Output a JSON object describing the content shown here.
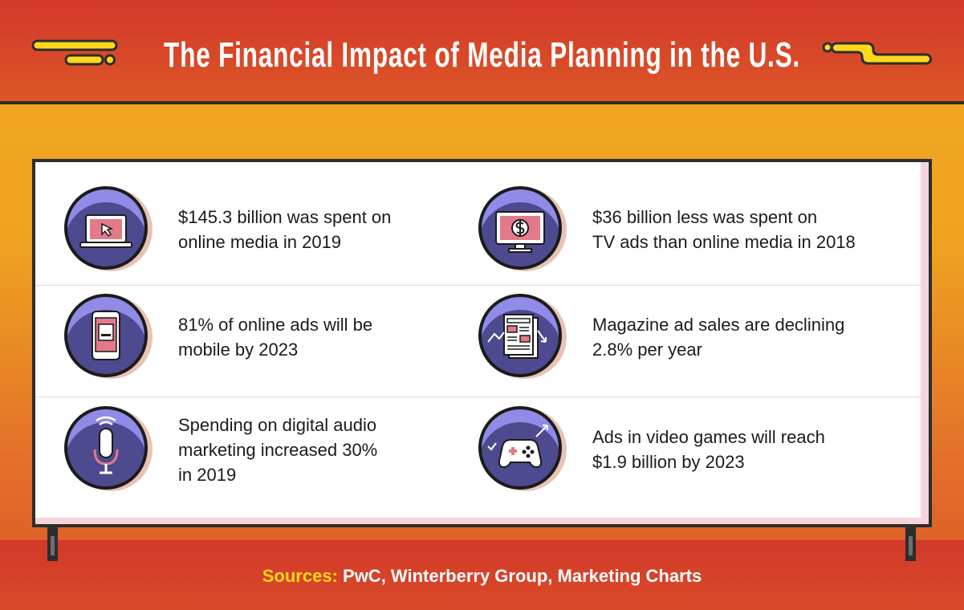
{
  "title": "The Financial Impact of Media Planning in the U.S.",
  "stats": [
    {
      "icon": "laptop-cursor-icon",
      "text": "$145.3 billion was spent on\nonline media in 2019"
    },
    {
      "icon": "tv-dollar-icon",
      "text": "$36 billion less was spent on\nTV ads than online media in 2018"
    },
    {
      "icon": "smartphone-icon",
      "text": "81% of online ads will be\nmobile by 2023"
    },
    {
      "icon": "magazine-decline-icon",
      "text": "Magazine ad sales are declining\n2.8% per year"
    },
    {
      "icon": "microphone-icon",
      "text": "Spending on digital audio\nmarketing increased 30%\nin 2019"
    },
    {
      "icon": "game-controller-icon",
      "text": "Ads in video games will reach\n$1.9 billion by 2023"
    }
  ],
  "sources": {
    "label": "Sources:",
    "text": " PwC, Winterberry Group, Marketing Charts"
  },
  "colors": {
    "header": "#d3382a",
    "background": "#f1a91f",
    "circle": "#4e4a8f",
    "circle_highlight": "#8f8be6",
    "screen_accent": "#e27a8a",
    "accent_yellow": "#ffd81b"
  }
}
